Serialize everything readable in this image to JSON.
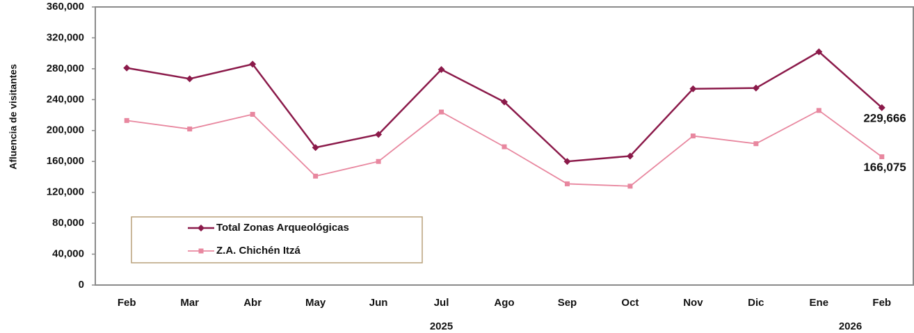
{
  "chart_data": {
    "type": "line",
    "y_label": "Afluencia de visitantes",
    "categories": [
      "Feb",
      "Mar",
      "Abr",
      "May",
      "Jun",
      "Jul",
      "Ago",
      "Sep",
      "Oct",
      "Nov",
      "Dic",
      "Ene",
      "Feb"
    ],
    "year_groups": [
      {
        "label": "2025",
        "count": 11
      },
      {
        "label": "2026",
        "count": 2
      }
    ],
    "series": [
      {
        "name": "Total Zonas Arqueológicas",
        "color": "#8b1a4a",
        "marker": "diamond",
        "values": [
          281000,
          267000,
          286000,
          178000,
          195000,
          279000,
          237000,
          160000,
          167000,
          254000,
          255000,
          302000,
          229666
        ],
        "value_labels": [
          null,
          null,
          null,
          null,
          null,
          null,
          null,
          null,
          null,
          null,
          null,
          null,
          "229,666"
        ]
      },
      {
        "name": "Z.A. Chichén Itzá",
        "color": "#e8879f",
        "marker": "square",
        "values": [
          213000,
          202000,
          221000,
          141000,
          160000,
          224000,
          179000,
          131000,
          128000,
          193000,
          183000,
          226000,
          166075
        ],
        "value_labels": [
          null,
          null,
          null,
          null,
          null,
          null,
          null,
          null,
          null,
          null,
          null,
          null,
          "166,075"
        ]
      }
    ],
    "ylim": [
      0,
      360000
    ],
    "yticks": [
      0,
      {
        "value": 40000,
        "label": "40,000"
      },
      {
        "value": 80000,
        "label": "80,000"
      },
      {
        "value": 120000,
        "label": "120,000"
      },
      {
        "value": 160000,
        "label": "160,000"
      },
      {
        "value": 200000,
        "label": "200,000"
      },
      {
        "value": 240000,
        "label": "240,000"
      },
      {
        "value": 280000,
        "label": "280,000"
      },
      {
        "value": 320000,
        "label": "320,000"
      },
      {
        "value": 360000,
        "label": "360,000"
      }
    ],
    "legend": "lower-left"
  }
}
